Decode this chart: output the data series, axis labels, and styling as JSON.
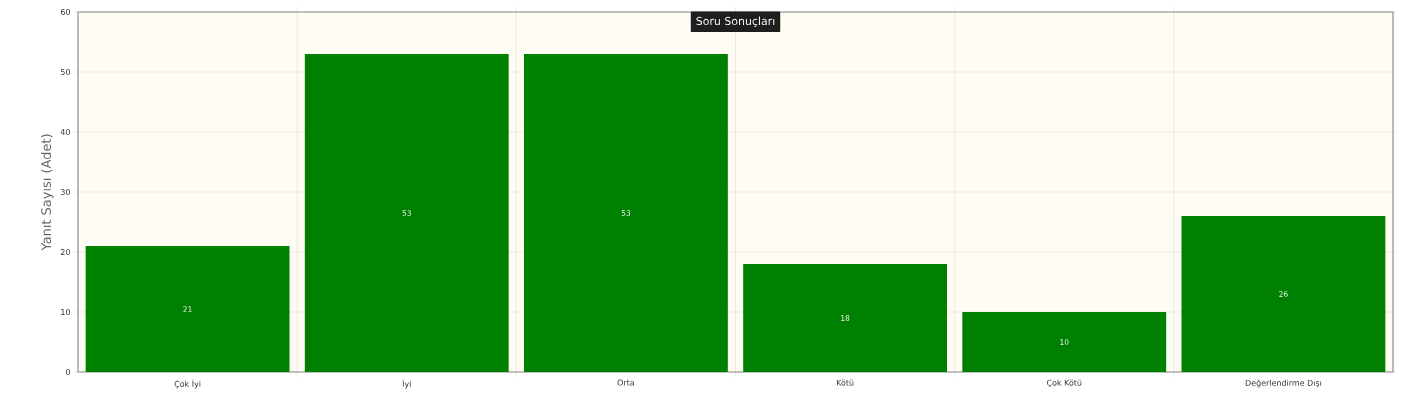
{
  "chart_data": {
    "type": "bar",
    "title": "Soru Sonuçları",
    "ylabel": "Yanıt Sayısı (Adet)",
    "categories": [
      "Çok İyi",
      "İyi",
      "Orta",
      "Kötü",
      "Çok Kötü",
      "Değerlendirme Dışı"
    ],
    "values": [
      21,
      53,
      53,
      18,
      10,
      26
    ],
    "color": "#008000",
    "ylim": [
      0,
      60
    ],
    "yticks": [
      0,
      10,
      20,
      30,
      40,
      50,
      60
    ],
    "grid": true,
    "data_labels": true
  }
}
